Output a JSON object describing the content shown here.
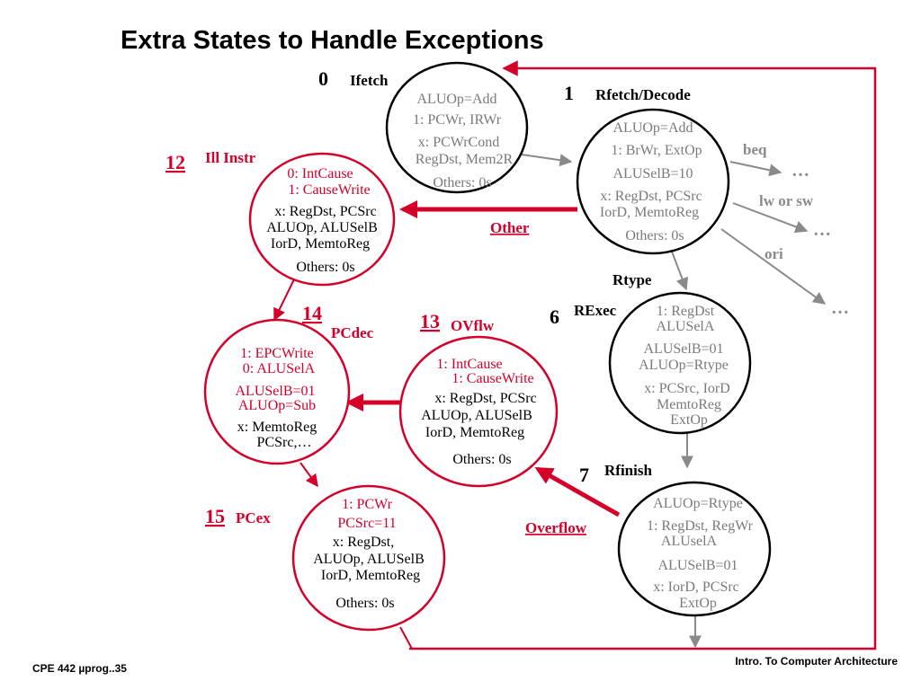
{
  "title": "Extra States to Handle Exceptions",
  "footer_left": "CPE 442  µprog..35",
  "footer_right": "Intro. To Computer Architecture",
  "colors": {
    "red": "#d4002a",
    "gray": "#8a8a8a"
  },
  "states": {
    "s0": {
      "number": "0",
      "name": "Ifetch",
      "lines": [
        "ALUOp=Add",
        "1: PCWr, IRWr",
        "x: PCWrCond",
        "RegDst, Mem2R",
        "Others: 0s"
      ]
    },
    "s1": {
      "number": "1",
      "name": "Rfetch/Decode",
      "lines": [
        "ALUOp=Add",
        "1: BrWr, ExtOp",
        "ALUSelB=10",
        "x: RegDst, PCSrc",
        "IorD, MemtoReg",
        "Others: 0s"
      ]
    },
    "s6": {
      "number": "6",
      "name": "RExec",
      "lines": [
        "1: RegDst",
        "ALUSelA",
        "ALUSelB=01",
        "ALUOp=Rtype",
        "x: PCSrc, IorD",
        "MemtoReg",
        "ExtOp"
      ]
    },
    "s7": {
      "number": "7",
      "name": "Rfinish",
      "lines": [
        "ALUOp=Rtype",
        "1: RegDst, RegWr",
        "ALUselA",
        "ALUSelB=01",
        "x: IorD, PCSrc",
        "ExtOp"
      ]
    },
    "s12": {
      "number": "12",
      "name": "Ill Instr",
      "lines": [
        "0: IntCause",
        "1: CauseWrite",
        "x: RegDst, PCSrc",
        "ALUOp, ALUSelB",
        "IorD, MemtoReg",
        "Others: 0s"
      ]
    },
    "s13": {
      "number": "13",
      "name": "OVflw",
      "lines": [
        "1: IntCause",
        "1: CauseWrite",
        "x: RegDst, PCSrc",
        "ALUOp, ALUSelB",
        "IorD, MemtoReg",
        "Others: 0s"
      ]
    },
    "s14": {
      "number": "14",
      "name": "PCdec",
      "lines": [
        "1: EPCWrite",
        "0: ALUSelA",
        "ALUSelB=01",
        "ALUOp=Sub",
        "x: MemtoReg",
        "PCSrc,…"
      ]
    },
    "s15": {
      "number": "15",
      "name": "PCex",
      "lines": [
        "1: PCWr",
        "PCSrc=11",
        "x: RegDst,",
        "ALUOp, ALUSelB",
        "IorD, MemtoReg",
        "Others: 0s"
      ]
    }
  },
  "transitions": {
    "beq": "beq",
    "lw_or_sw": "lw or sw",
    "ori": "ori",
    "rtype": "Rtype",
    "other": "Other",
    "overflow": "Overflow",
    "ellipsis": "…"
  }
}
